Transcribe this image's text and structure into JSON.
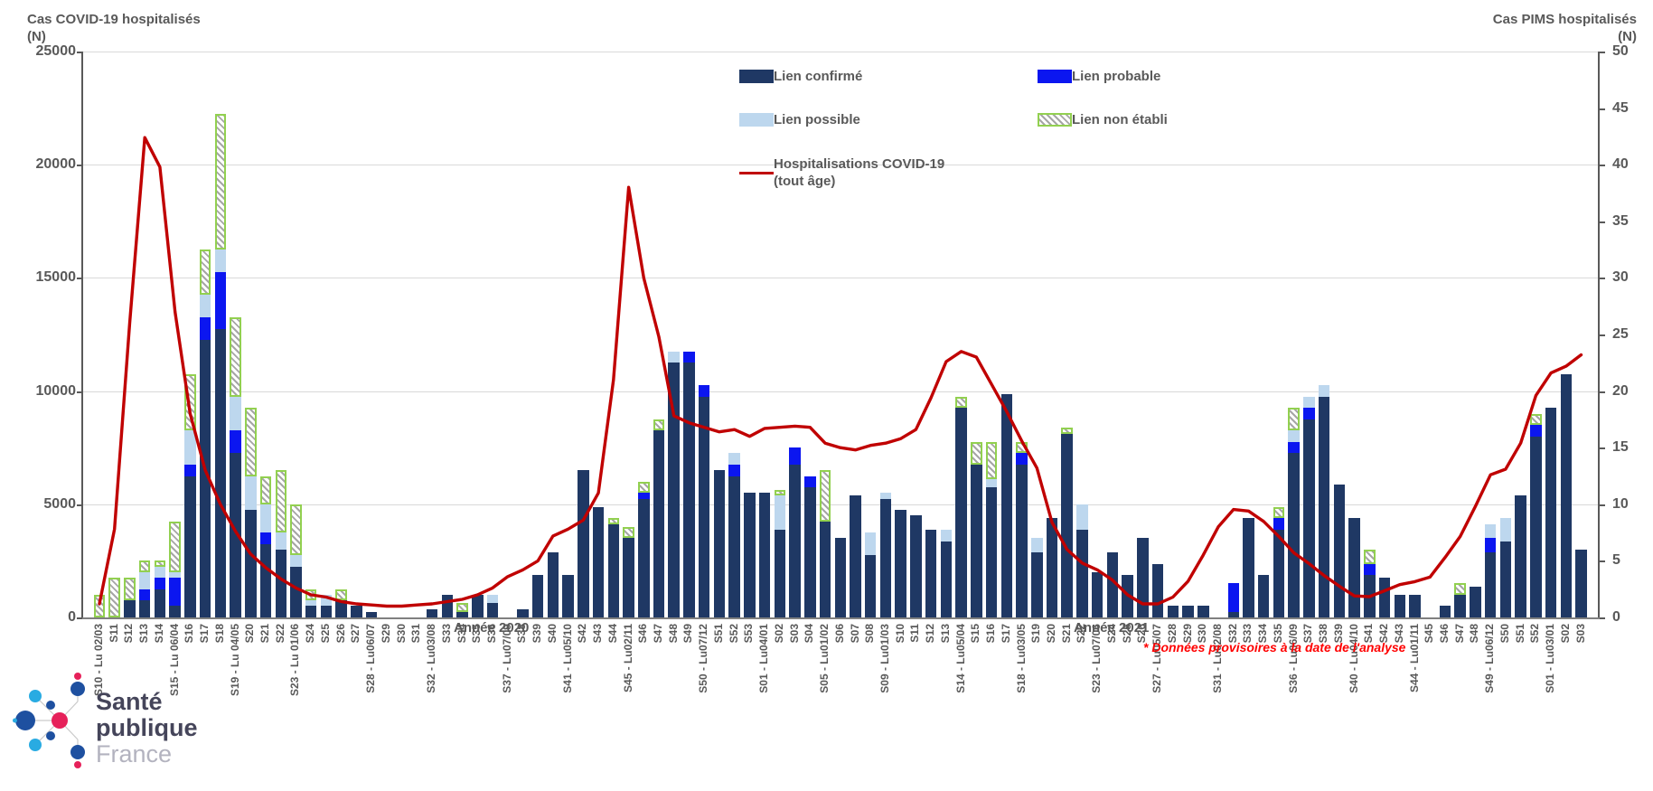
{
  "titles": {
    "left_line1": "Cas COVID-19 hospitalisés",
    "left_line2": "(N)",
    "right_line1": "Cas PIMS hospitalisés",
    "right_line2": "(N)"
  },
  "legend": {
    "confirme": "Lien confirmé",
    "probable": "Lien probable",
    "possible": "Lien possible",
    "non_etabli": "Lien non établi",
    "line_label_1": "Hospitalisations COVID-19",
    "line_label_2": "(tout âge)"
  },
  "footer": {
    "year_2020": "Année 2020",
    "year_2021": "Année 2021",
    "note": "* Données provisoires à la date de l'analyse",
    "logo_line1": "Santé",
    "logo_line2": "publique",
    "logo_line3": "France"
  },
  "colors": {
    "confirme": "#1f3864",
    "probable": "#0b16f0",
    "possible": "#bdd7ee",
    "non_etabli_border": "#92d050",
    "non_etabli_hatch": "#a6a6a6",
    "covid_line": "#c00000",
    "grid": "#d9d9d9",
    "axis_text": "#595959",
    "note_red": "#ff0000"
  },
  "chart_data": {
    "type": "combo (stacked bar + line)",
    "left_axis": {
      "min": 0,
      "max": 25000,
      "step": 5000,
      "label": "Cas COVID-19 hospitalisés (N)"
    },
    "right_axis": {
      "min": 0,
      "max": 50,
      "step": 5,
      "label": "Cas PIMS hospitalisés (N)"
    },
    "grid": "horizontal",
    "legend_position": "top-center",
    "categories": [
      "S10 - Lu 02/03",
      "S11",
      "S12",
      "S13",
      "S14",
      "S15 - Lu 06/04",
      "S16",
      "S17",
      "S18",
      "S19 - Lu 04/05",
      "S20",
      "S21",
      "S22",
      "S23 - Lu 01/06",
      "S24",
      "S25",
      "S26",
      "S27",
      "S28 - Lu06/07",
      "S29",
      "S30",
      "S31",
      "S32 - Lu03/08",
      "S33",
      "S34",
      "S35",
      "S36",
      "S37 - Lu07/09",
      "S38",
      "S39",
      "S40",
      "S41 - Lu05/10",
      "S42",
      "S43",
      "S44",
      "S45 - Lu02/11",
      "S46",
      "S47",
      "S48",
      "S49",
      "S50 - Lu07/12",
      "S51",
      "S52",
      "S53",
      "S01 - Lu04/01",
      "S02",
      "S03",
      "S04",
      "S05 - Lu01/02",
      "S06",
      "S07",
      "S08",
      "S09 - Lu01/03",
      "S10",
      "S11",
      "S12",
      "S13",
      "S14 - Lu05/04",
      "S15",
      "S16",
      "S17",
      "S18 - Lu03/05",
      "S19",
      "S20",
      "S21",
      "S22",
      "S23 - Lu07/06",
      "S24",
      "S25",
      "S26",
      "S27 - Lu05/07",
      "S28",
      "S29",
      "S30",
      "S31 - Lu02/08",
      "S32",
      "S33",
      "S34",
      "S35",
      "S36 - Lu06/09",
      "S37",
      "S38",
      "S39",
      "S40 - Lu04/10",
      "S41",
      "S42",
      "S43",
      "S44 - Lu01/11",
      "S45",
      "S46",
      "S47",
      "S48",
      "S49 - Lu06/12",
      "S50",
      "S51",
      "S52",
      "S01 - Lu03/01",
      "S02",
      "S03"
    ],
    "series": [
      {
        "name": "Lien confirmé",
        "axis": "right",
        "values": [
          0,
          0,
          1.5,
          1.5,
          2.5,
          1,
          12.5,
          24.5,
          25.5,
          14.5,
          9.5,
          6.5,
          6,
          4.5,
          1,
          1,
          1.5,
          1,
          0.5,
          0,
          0,
          0,
          0.75,
          2,
          0.5,
          2,
          1.25,
          0,
          0.75,
          3.75,
          5.75,
          3.75,
          13,
          9.75,
          8.25,
          7,
          10.5,
          16.5,
          22.5,
          22.5,
          19.5,
          13,
          12.5,
          11,
          11,
          7.75,
          13.5,
          11.5,
          8.5,
          7,
          10.75,
          5.5,
          10.5,
          9.5,
          9,
          7.75,
          6.75,
          18.5,
          13.5,
          11.5,
          19.75,
          13.5,
          5.75,
          8.75,
          16.25,
          7.75,
          4,
          5.75,
          3.75,
          7,
          4.75,
          1,
          1,
          1,
          0,
          0.5,
          8.75,
          3.75,
          7.75,
          14.5,
          17.5,
          19.5,
          11.75,
          8.75,
          3.75,
          3.5,
          2,
          2,
          0,
          1,
          2,
          2.75,
          5.75,
          6.75,
          10.75,
          16,
          18.5,
          21.5,
          6
        ]
      },
      {
        "name": "Lien probable",
        "axis": "right",
        "values": [
          0,
          0,
          0,
          1,
          1,
          2.5,
          1,
          2,
          5,
          2,
          0,
          1,
          0,
          0,
          0,
          0,
          0,
          0,
          0,
          0,
          0,
          0,
          0,
          0,
          0,
          0,
          0,
          0,
          0,
          0,
          0,
          0,
          0,
          0,
          0,
          0,
          0.5,
          0,
          0,
          1,
          1,
          0,
          1,
          0,
          0,
          0,
          1.5,
          1,
          0,
          0,
          0,
          0,
          0,
          0,
          0,
          0,
          0,
          0,
          0,
          0,
          0,
          1,
          0,
          0,
          0,
          0,
          0,
          0,
          0,
          0,
          0,
          0,
          0,
          0,
          0,
          2.5,
          0,
          0,
          1,
          1,
          1,
          0,
          0,
          0,
          1,
          0,
          0,
          0,
          0,
          0,
          0,
          0,
          1.25,
          0,
          0,
          1,
          0,
          0,
          0
        ]
      },
      {
        "name": "Lien possible",
        "axis": "right",
        "values": [
          0,
          0,
          0,
          1.5,
          1,
          0.5,
          3,
          2,
          2,
          3,
          3,
          2.5,
          1.5,
          1,
          0.5,
          1,
          0,
          0,
          0,
          0,
          0,
          0,
          0,
          0,
          0,
          0,
          0.75,
          0,
          0,
          0,
          0,
          0,
          0,
          0,
          0,
          0,
          0,
          0,
          1,
          0,
          0,
          0,
          1,
          0,
          0,
          3,
          0,
          0,
          0,
          0,
          0,
          2,
          0.5,
          0,
          0,
          0,
          1,
          0,
          0,
          0.75,
          0,
          0,
          1.25,
          0,
          0,
          2.25,
          0,
          0,
          0,
          0,
          0,
          0,
          0,
          0,
          0,
          0,
          0,
          0,
          0,
          1,
          1,
          1,
          0,
          0,
          0,
          0,
          0,
          0,
          0,
          0,
          0,
          0,
          1.25,
          2,
          0,
          0,
          0,
          0
        ]
      },
      {
        "name": "Lien non établi",
        "axis": "right",
        "values": [
          2,
          3.5,
          2,
          1,
          0.5,
          4.5,
          5,
          4,
          12,
          7,
          6,
          2.5,
          5.5,
          4.5,
          1,
          0,
          1,
          0,
          0,
          0,
          0,
          0,
          0,
          0,
          0.75,
          0,
          0,
          0,
          0,
          0,
          0,
          0,
          0,
          0,
          0.5,
          1,
          1,
          1,
          0,
          0,
          0,
          0,
          0,
          0,
          0,
          0.5,
          0,
          0,
          4.5,
          0,
          0,
          0,
          0,
          0,
          0,
          0,
          0,
          1,
          2,
          3.25,
          0,
          1,
          0,
          0,
          0.5,
          0,
          0,
          0,
          0,
          0,
          0,
          0,
          0,
          0,
          0,
          0,
          0,
          0,
          1,
          2,
          0,
          0,
          0,
          0,
          1.25,
          0,
          0,
          0,
          0,
          0,
          1,
          0,
          0,
          0,
          0,
          1,
          0,
          0
        ]
      }
    ],
    "line": {
      "name": "Hospitalisations COVID-19 (tout âge)",
      "axis": "left",
      "values": [
        600,
        3900,
        13000,
        21200,
        19900,
        13500,
        9000,
        6500,
        5000,
        3800,
        2800,
        2200,
        1700,
        1300,
        1000,
        900,
        700,
        600,
        550,
        500,
        500,
        550,
        600,
        700,
        800,
        1000,
        1300,
        1800,
        2100,
        2500,
        3600,
        3900,
        4300,
        5500,
        10500,
        19000,
        15000,
        12400,
        8900,
        8600,
        8400,
        8200,
        8300,
        8000,
        8350,
        8400,
        8450,
        8400,
        7700,
        7500,
        7400,
        7600,
        7700,
        7900,
        8300,
        9700,
        11300,
        11750,
        11500,
        10300,
        9100,
        7800,
        6600,
        4200,
        3000,
        2400,
        2100,
        1650,
        1000,
        600,
        600,
        900,
        1600,
        2750,
        4000,
        4770,
        4700,
        4240,
        3580,
        2850,
        2380,
        1850,
        1380,
        950,
        920,
        1180,
        1450,
        1580,
        1780,
        2650,
        3580,
        4900,
        6300,
        6550,
        7700,
        9800,
        10800,
        11100,
        11600
      ]
    }
  },
  "axes": {
    "left_ticks": [
      "25000",
      "20000",
      "15000",
      "10000",
      "5000",
      "0"
    ],
    "right_ticks": [
      "50",
      "45",
      "40",
      "35",
      "30",
      "25",
      "20",
      "15",
      "10",
      "5",
      "0"
    ]
  }
}
